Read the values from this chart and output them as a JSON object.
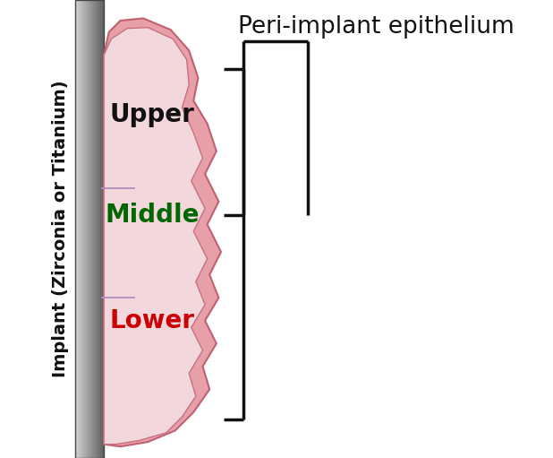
{
  "background_color": "#ffffff",
  "outer_tissue_color": "#e8a0a8",
  "outer_tissue_edge": "#c06070",
  "inner_tissue_color": "#f2d8dc",
  "inner_tissue_edge": "#c87080",
  "divider_color": "#b090b8",
  "label_upper": "Upper",
  "label_middle": "Middle",
  "label_lower": "Lower",
  "label_upper_color": "#111111",
  "label_middle_color": "#006600",
  "label_lower_color": "#cc0000",
  "label_implant": "Implant (Zirconia or Titanium)",
  "label_epithelium": "Peri-implant epithelium",
  "bracket_color": "#111111",
  "label_fontsize": 20,
  "implant_label_fontsize": 14,
  "epithelium_label_fontsize": 19
}
